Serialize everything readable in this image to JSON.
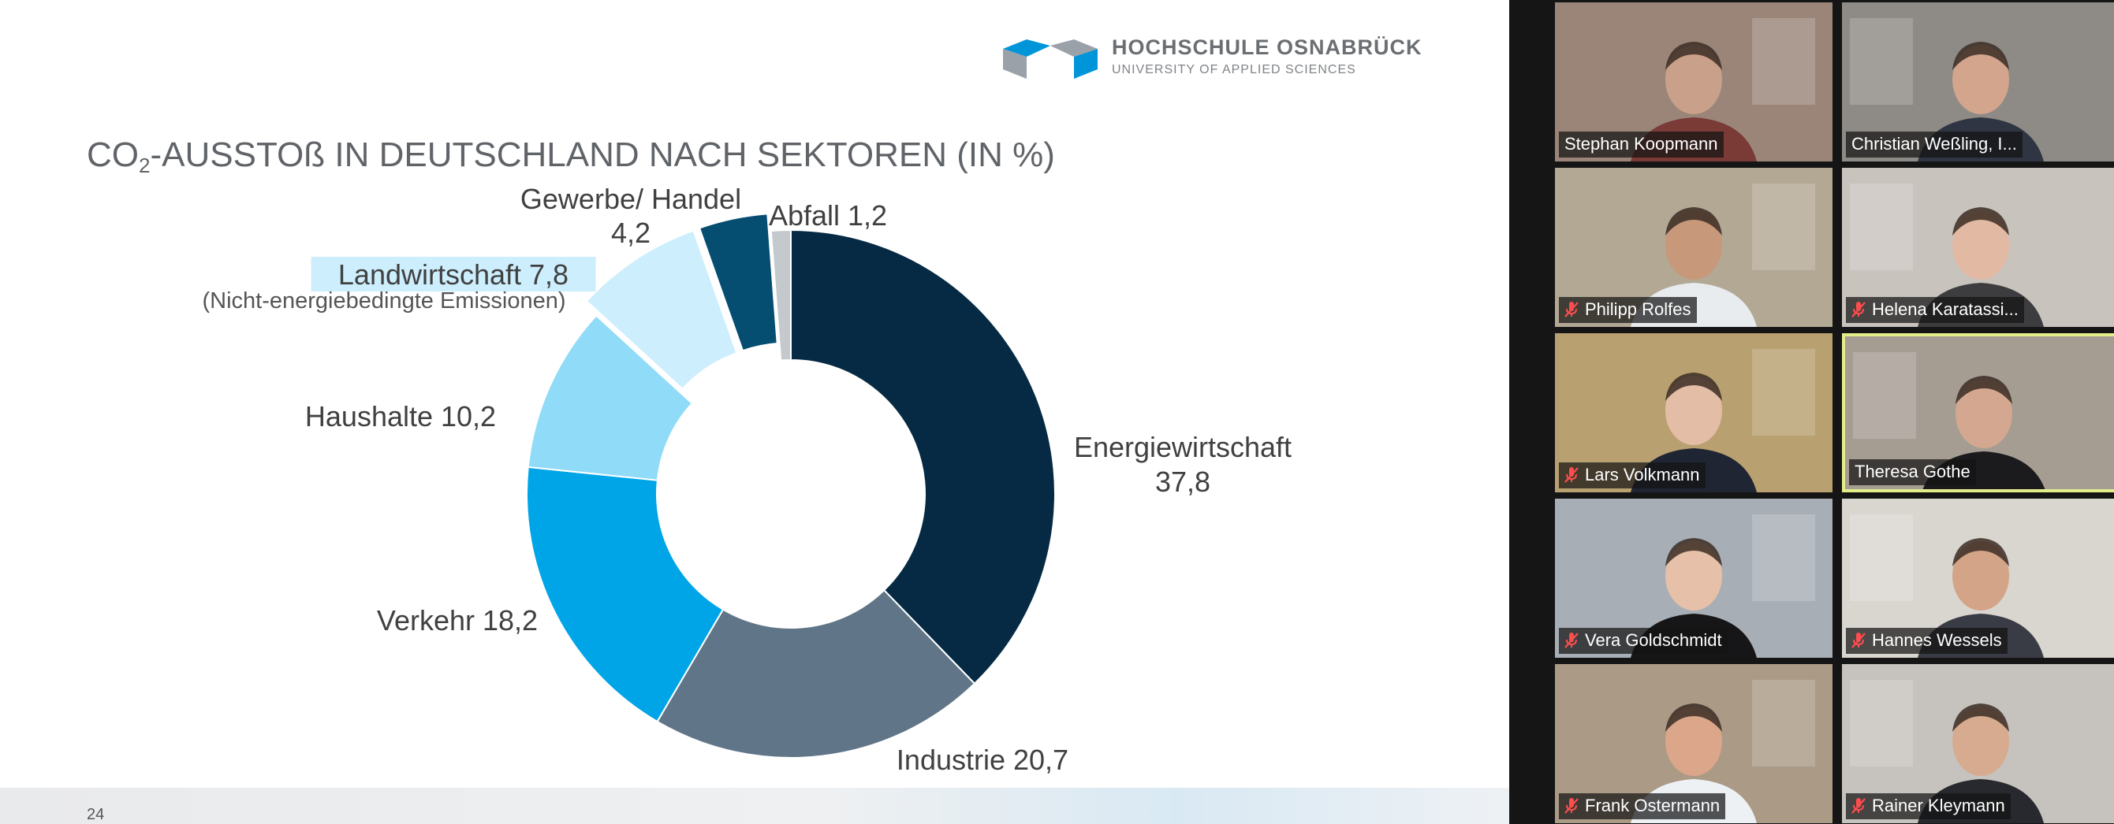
{
  "slide": {
    "logo_name": "HOCHSCHULE OSNABRÜCK",
    "logo_sub": "UNIVERSITY OF APPLIED SCIENCES",
    "title_main": "CO",
    "title_sub": "2",
    "title_rest": "-AUSSTOß IN DEUTSCHLAND NACH SEKTOREN (IN %)",
    "page_number": "24"
  },
  "chart_data": {
    "type": "pie",
    "donut": true,
    "title": "CO2-AUSSTOß IN DEUTSCHLAND NACH SEKTOREN (IN %)",
    "slices": [
      {
        "label": "Energiewirtschaft",
        "value": 37.8,
        "value_text": "37,8",
        "color": "#062a43"
      },
      {
        "label": "Industrie",
        "value": 20.7,
        "value_text": "20,7",
        "color": "#607688"
      },
      {
        "label": "Verkehr",
        "value": 18.2,
        "value_text": "18,2",
        "color": "#00a5e8"
      },
      {
        "label": "Haushalte",
        "value": 10.2,
        "value_text": "10,2",
        "color": "#8fdbf8"
      },
      {
        "label": "Landwirtschaft",
        "value": 7.8,
        "value_text": "7,8",
        "color": "#cdeefc",
        "exploded": true,
        "highlighted": true,
        "note": "(Nicht-energiebedingte Emissionen)"
      },
      {
        "label": "Gewerbe/ Handel",
        "value": 4.2,
        "value_text": "4,2",
        "color": "#064d72",
        "exploded": true
      },
      {
        "label": "Abfall",
        "value": 1.2,
        "value_text": "1,2",
        "color": "#c4c9ce"
      }
    ]
  },
  "participants": [
    {
      "name": "Stephan Koopmann",
      "muted": false,
      "active": false,
      "bg": "#9a8578",
      "skin": "#c9a08a",
      "shirt": "#7a3a36"
    },
    {
      "name": "Christian Weßling, I...",
      "muted": false,
      "active": false,
      "bg": "#8e8a86",
      "skin": "#d2a58c",
      "shirt": "#2f3542"
    },
    {
      "name": "Philipp Rolfes",
      "muted": true,
      "active": false,
      "bg": "#b3a894",
      "skin": "#c8987a",
      "shirt": "#e8ecef"
    },
    {
      "name": "Helena Karatassi...",
      "muted": true,
      "active": false,
      "bg": "#c9c3bd",
      "skin": "#e2b9a3",
      "shirt": "#3d3d3f"
    },
    {
      "name": "Lars Volkmann",
      "muted": true,
      "active": false,
      "bg": "#b9a070",
      "skin": "#e3bda5",
      "shirt": "#1f2533"
    },
    {
      "name": "Theresa Gothe",
      "muted": false,
      "active": true,
      "bg": "#a59c92",
      "skin": "#d4a890",
      "shirt": "#1b1b1d"
    },
    {
      "name": "Vera Goldschmidt",
      "muted": true,
      "active": false,
      "bg": "#a8aeb5",
      "skin": "#e6c0a8",
      "shirt": "#161618"
    },
    {
      "name": "Hannes Wessels",
      "muted": true,
      "active": false,
      "bg": "#d9d5cf",
      "skin": "#d3a487",
      "shirt": "#3a3c45"
    },
    {
      "name": "Frank Ostermann",
      "muted": true,
      "active": false,
      "bg": "#ab9a86",
      "skin": "#dba689",
      "shirt": "#eef1f4"
    },
    {
      "name": "Rainer Kleymann",
      "muted": true,
      "active": false,
      "bg": "#c6c3be",
      "skin": "#d7ab8f",
      "shirt": "#27292e"
    }
  ]
}
